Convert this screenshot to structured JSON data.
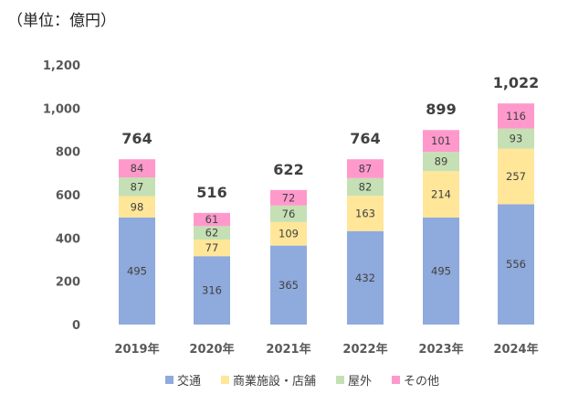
{
  "chart_data": {
    "type": "bar",
    "stacked": true,
    "unit_label": "（単位：億円）",
    "categories": [
      "2019年",
      "2020年",
      "2021年",
      "2022年",
      "2023年",
      "2024年"
    ],
    "series": [
      {
        "name": "交通",
        "color": "#8FAADC",
        "values": [
          495,
          316,
          365,
          432,
          495,
          556
        ]
      },
      {
        "name": "商業施設・店舗",
        "color": "#FFE699",
        "values": [
          98,
          77,
          109,
          163,
          214,
          257
        ]
      },
      {
        "name": "屋外",
        "color": "#C5E0B4",
        "values": [
          87,
          62,
          76,
          82,
          89,
          93
        ]
      },
      {
        "name": "その他",
        "color": "#FF99CC",
        "values": [
          84,
          61,
          72,
          87,
          101,
          116
        ]
      }
    ],
    "totals": [
      "764",
      "516",
      "622",
      "764",
      "899",
      "1,022"
    ],
    "y_ticks": [
      "0",
      "200",
      "400",
      "600",
      "800",
      "1,000",
      "1,200"
    ],
    "ylim": [
      0,
      1200
    ],
    "grid": false,
    "legend_position": "bottom"
  }
}
